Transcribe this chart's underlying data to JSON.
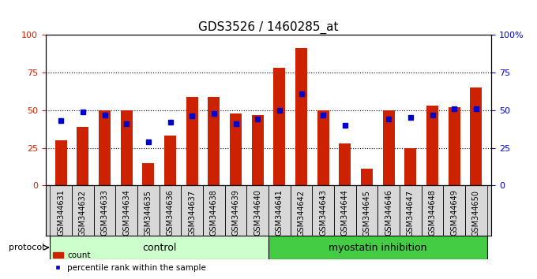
{
  "title": "GDS3526 / 1460285_at",
  "samples": [
    "GSM344631",
    "GSM344632",
    "GSM344633",
    "GSM344634",
    "GSM344635",
    "GSM344636",
    "GSM344637",
    "GSM344638",
    "GSM344639",
    "GSM344640",
    "GSM344641",
    "GSM344642",
    "GSM344643",
    "GSM344644",
    "GSM344645",
    "GSM344646",
    "GSM344647",
    "GSM344648",
    "GSM344649",
    "GSM344650"
  ],
  "counts": [
    30,
    39,
    50,
    50,
    15,
    33,
    59,
    59,
    48,
    47,
    78,
    91,
    50,
    28,
    11,
    50,
    25,
    53,
    52,
    65
  ],
  "percentiles": [
    43,
    49,
    47,
    41,
    29,
    42,
    46,
    48,
    41,
    44,
    50,
    61,
    47,
    40,
    null,
    44,
    45,
    47,
    51,
    51
  ],
  "bar_color": "#cc2200",
  "dot_color": "#0000cc",
  "control_count": 10,
  "control_label": "control",
  "treatment_label": "myostatin inhibition",
  "protocol_label": "protocol",
  "control_bg": "#ccffcc",
  "treatment_bg": "#44cc44",
  "legend_count_label": "count",
  "legend_percentile_label": "percentile rank within the sample",
  "ylim": [
    0,
    100
  ],
  "yticks": [
    0,
    25,
    50,
    75,
    100
  ],
  "grid_values": [
    25,
    50,
    75
  ],
  "title_fontsize": 11,
  "tick_fontsize": 7,
  "xtick_bg": "#d8d8d8"
}
